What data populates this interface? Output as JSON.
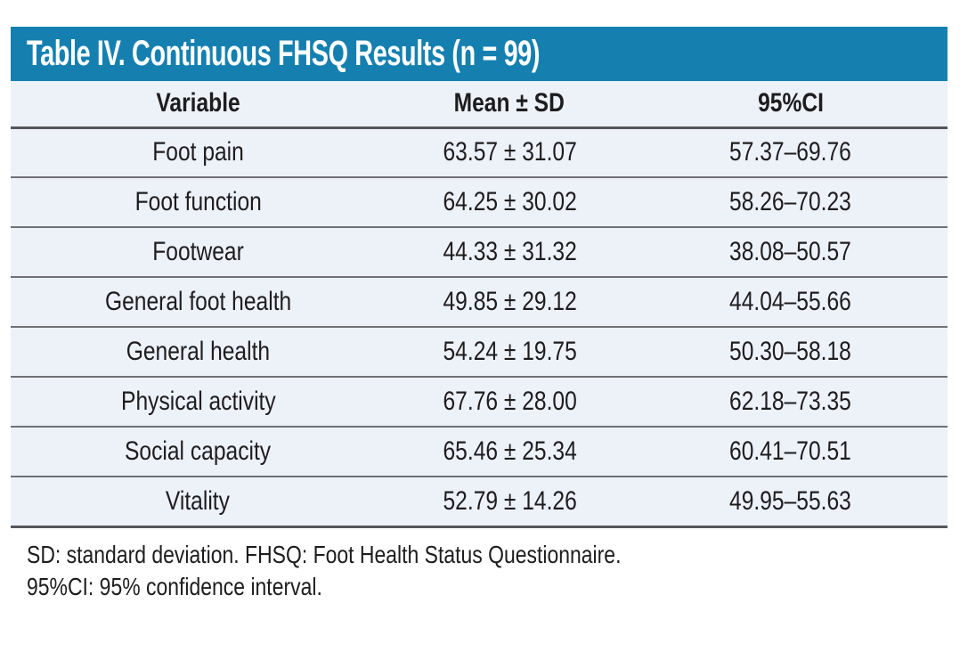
{
  "table": {
    "title": "Table IV. Continuous FHSQ Results (n = 99)",
    "columns": [
      "Variable",
      "Mean ± SD",
      "95%CI"
    ],
    "rows": [
      {
        "variable": "Foot pain",
        "mean_sd": "63.57 ± 31.07",
        "ci_95": "57.37–69.76"
      },
      {
        "variable": "Foot function",
        "mean_sd": "64.25 ± 30.02",
        "ci_95": "58.26–70.23"
      },
      {
        "variable": "Footwear",
        "mean_sd": "44.33 ± 31.32",
        "ci_95": "38.08–50.57"
      },
      {
        "variable": "General foot health",
        "mean_sd": "49.85 ± 29.12",
        "ci_95": "44.04–55.66"
      },
      {
        "variable": "General health",
        "mean_sd": "54.24 ± 19.75",
        "ci_95": "50.30–58.18"
      },
      {
        "variable": "Physical activity",
        "mean_sd": "67.76 ± 28.00",
        "ci_95": "62.18–73.35"
      },
      {
        "variable": "Social capacity",
        "mean_sd": "65.46 ± 25.34",
        "ci_95": "60.41–70.51"
      },
      {
        "variable": "Vitality",
        "mean_sd": "52.79 ± 14.26",
        "ci_95": "49.95–55.63"
      }
    ],
    "footnotes": [
      "SD: standard deviation. FHSQ: Foot Health Status Questionnaire.",
      "95%CI: 95% confidence interval."
    ],
    "colors": {
      "title_bar_bg": "#1580b0",
      "title_text": "#ffffff",
      "row_bg": "#edf1f8",
      "thick_rule": "#55565a",
      "thin_rule": "#6f7074",
      "body_text": "#1d1d1f"
    }
  }
}
